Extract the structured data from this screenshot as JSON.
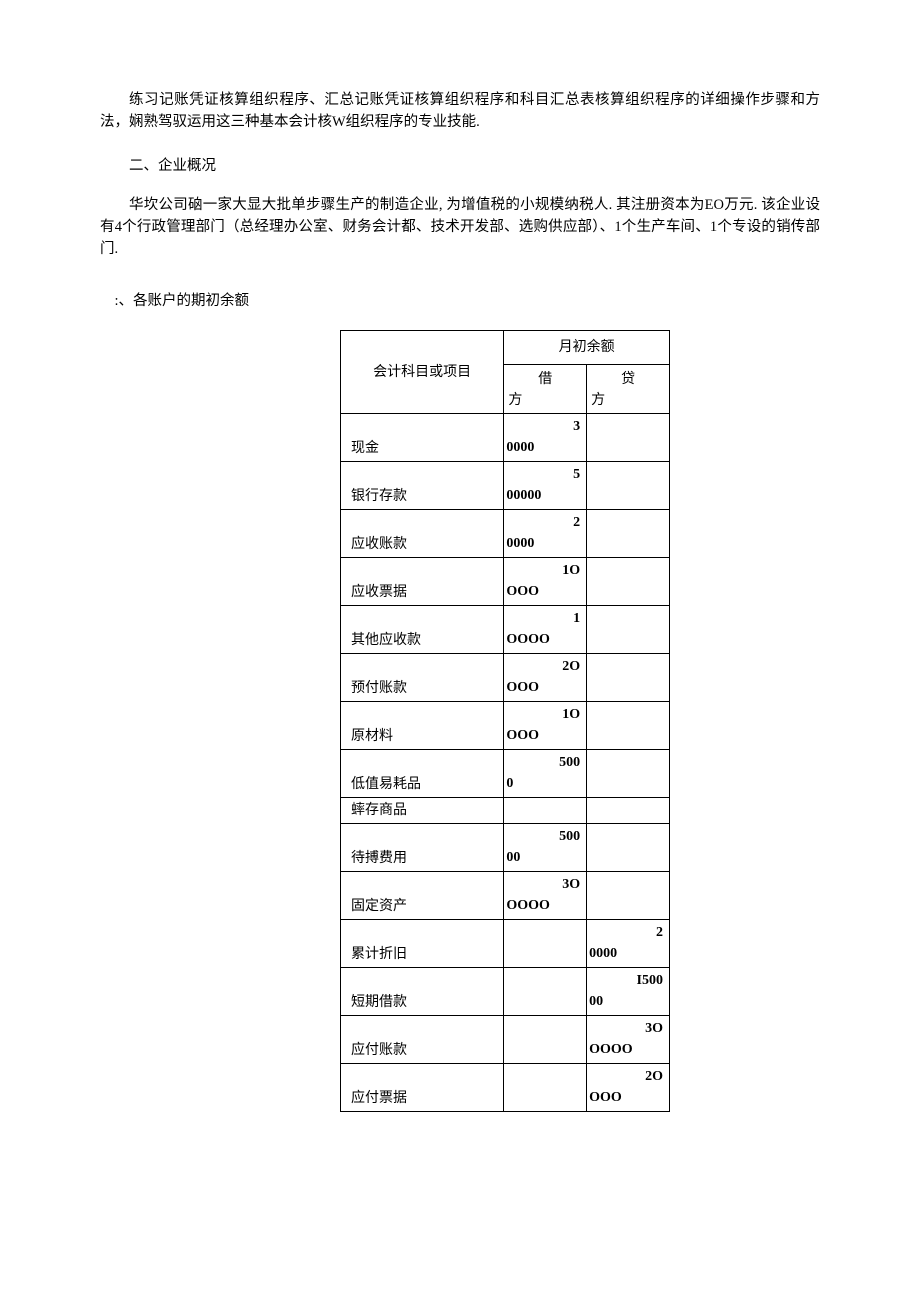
{
  "colors": {
    "background": "#ffffff",
    "text": "#000000",
    "border": "#000000"
  },
  "typography": {
    "body_font_family": "SimSun",
    "body_font_size_pt": 11,
    "line_height": 1.5
  },
  "paragraphs": {
    "p1": "练习记账凭证核算组织程序、汇总记账凭证核算组织程序和科目汇总表核算组织程序的详细操作步骤和方法，娴熟驾驭运用这三种基本会计核W组织程序的专业技能.",
    "sec2_title": "二、企业概况",
    "p2": "华坎公司硇一家大显大批单步骤生产的制造企业, 为增值税的小规模纳税人. 其注册资本为EO万元. 该企业设有4个行政管理部门（总经理办公室、财务会计都、技术开发部、选购供应部）、1个生产车间、1个专设的销传部门.",
    "sub_title": ":、各账户的期初余额"
  },
  "table": {
    "header": {
      "acct": "会计科目或项目",
      "balance": "月初余额",
      "debit_top": "借",
      "debit_bot": "方",
      "credit_top": "贷",
      "credit_bot": "方"
    },
    "rows": [
      {
        "label": "现金",
        "dr_top": "3",
        "dr_bot": "0000",
        "cr_top": "",
        "cr_bot": ""
      },
      {
        "label": "银行存款",
        "dr_top": "5",
        "dr_bot": "00000",
        "cr_top": "",
        "cr_bot": ""
      },
      {
        "label": "应收账款",
        "dr_top": "2",
        "dr_bot": "0000",
        "cr_top": "",
        "cr_bot": ""
      },
      {
        "label": "应收票据",
        "dr_top": "1O",
        "dr_bot": "OOO",
        "cr_top": "",
        "cr_bot": ""
      },
      {
        "label": "其他应收款",
        "dr_top": "1",
        "dr_bot": "OOOO",
        "cr_top": "",
        "cr_bot": ""
      },
      {
        "label": "预付账款",
        "dr_top": "2O",
        "dr_bot": "OOO",
        "cr_top": "",
        "cr_bot": ""
      },
      {
        "label": "原材料",
        "dr_top": "1O",
        "dr_bot": "OOO",
        "cr_top": "",
        "cr_bot": ""
      },
      {
        "label": "低值易耗品",
        "dr_top": "500",
        "dr_bot": "0",
        "cr_top": "",
        "cr_bot": ""
      },
      {
        "label": "蟀存商品",
        "single": true
      },
      {
        "label": "待搏费用",
        "dr_top": "500",
        "dr_bot": "00",
        "cr_top": "",
        "cr_bot": ""
      },
      {
        "label": "固定资产",
        "dr_top": "3O",
        "dr_bot": "OOOO",
        "cr_top": "",
        "cr_bot": ""
      },
      {
        "label": "累计折旧",
        "dr_top": "",
        "dr_bot": "",
        "cr_top": "2",
        "cr_bot": "0000"
      },
      {
        "label": "短期借款",
        "dr_top": "",
        "dr_bot": "",
        "cr_top": "I500",
        "cr_bot": "00"
      },
      {
        "label": "应付账款",
        "dr_top": "",
        "dr_bot": "",
        "cr_top": "3O",
        "cr_bot": "OOOO"
      },
      {
        "label": "应付票据",
        "dr_top": "",
        "dr_bot": "",
        "cr_top": "2O",
        "cr_bot": "OOO"
      }
    ]
  }
}
